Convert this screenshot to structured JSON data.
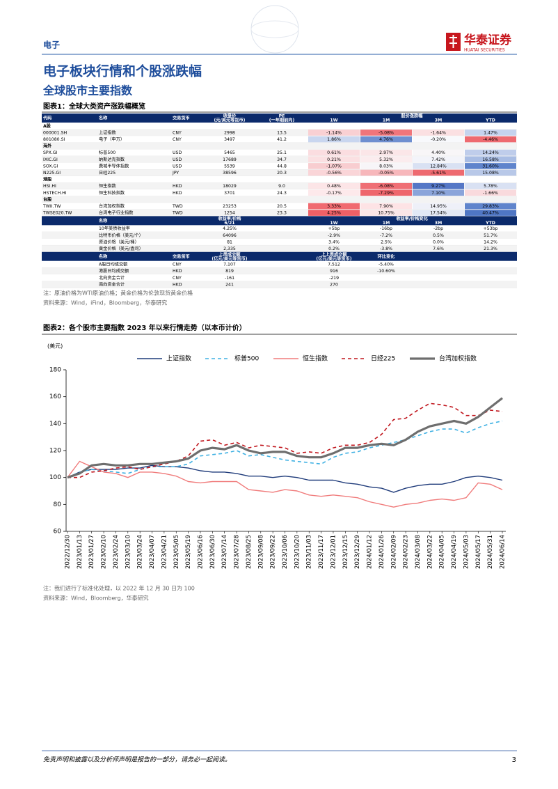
{
  "header": {
    "section": "电子",
    "logo_cn": "华泰证券",
    "logo_en": "HUATAI SECURITIES"
  },
  "title": "电子板块行情和个股涨跌幅",
  "subtitle": "全球股市主要指数",
  "figure1": {
    "caption": "图表1：全球大类资产涨跌幅概览",
    "table1": {
      "head": {
        "code": "代码",
        "name": "名称",
        "currency": "交易货币",
        "close": [
          "收盘价",
          "(元/美元等货币)"
        ],
        "pe": [
          "PE",
          "(一年期前向)"
        ],
        "change": "股价涨跌幅",
        "periods": [
          "1W",
          "1M",
          "3M",
          "YTD"
        ]
      },
      "groups": [
        {
          "label": "A股",
          "rows": [
            {
              "cells": [
                "000001.SH",
                "上证指数",
                "CNY",
                "2998",
                "13.5",
                "-1.14%",
                "-5.08%",
                "-1.64%",
                "1.47%"
              ],
              "fills": [
                "#f9d0d3",
                "#f0757b",
                "#fbe0e2",
                "#c5d3ee"
              ]
            },
            {
              "cells": [
                "801080.SI",
                "电子（申万）",
                "CNY",
                "3497",
                "41.2",
                "1.86%",
                "4.76%",
                "-0.20%",
                "-4.46%"
              ],
              "fills": [
                "#c9d6ef",
                "#6e8fd0",
                "#f8f9fc",
                "#ee6a70"
              ]
            }
          ]
        },
        {
          "label": "海外",
          "rows": [
            {
              "cells": [
                "SPX.GI",
                "标普500",
                "USD",
                "5465",
                "25.1",
                "0.61%",
                "2.97%",
                "4.40%",
                "14.24%"
              ],
              "fills": [
                "#fbdde0",
                "#fbe6e8",
                "#f8f6f8",
                "#bfcdeb"
              ]
            },
            {
              "cells": [
                "IXIC.GI",
                "纳斯达克指数",
                "USD",
                "17689",
                "34.7",
                "0.21%",
                "5.32%",
                "7.42%",
                "16.58%"
              ],
              "fills": [
                "#fbe0e2",
                "#fbecee",
                "#f3f4fa",
                "#a9bde4"
              ]
            },
            {
              "cells": [
                "SOX.GI",
                "费城半导体指数",
                "USD",
                "5539",
                "44.8",
                "-1.07%",
                "8.03%",
                "12.84%",
                "31.60%"
              ],
              "fills": [
                "#f8cdd0",
                "#f7f5f8",
                "#d9e1f3",
                "#5f84cc"
              ]
            },
            {
              "cells": [
                "N225.GI",
                "日经225",
                "JPY",
                "38596",
                "20.3",
                "-0.56%",
                "-0.05%",
                "-5.61%",
                "15.08%"
              ],
              "fills": [
                "#fad5d8",
                "#f7b7bb",
                "#ee6a70",
                "#b8c8e8"
              ]
            }
          ]
        },
        {
          "label": "港股",
          "rows": [
            {
              "cells": [
                "HSI.HI",
                "恒生指数",
                "HKD",
                "18029",
                "9.0",
                "0.48%",
                "-6.08%",
                "9.27%",
                "5.78%"
              ],
              "fills": [
                "#fce5e7",
                "#ef6f75",
                "#5577c6",
                "#d9e1f3"
              ]
            },
            {
              "cells": [
                "HSTECH.HI",
                "恒生科技指数",
                "HKD",
                "3701",
                "24.3",
                "-0.17%",
                "-7.29%",
                "7.10%",
                "-1.66%"
              ],
              "fills": [
                "#fde9eb",
                "#ee666c",
                "#8aa4da",
                "#f9dadd"
              ]
            }
          ]
        },
        {
          "label": "台股",
          "rows": [
            {
              "cells": [
                "TWII.TW",
                "台湾加权指数",
                "TWD",
                "23253",
                "20.5",
                "3.33%",
                "7.90%",
                "14.95%",
                "29.83%"
              ],
              "fills": [
                "#f06a70",
                "#fde3e5",
                "#eef0f8",
                "#5f84cc"
              ]
            },
            {
              "cells": [
                "TWSE020.TW",
                "台湾电子行业指数",
                "TWD",
                "1254",
                "23.3",
                "4.25%",
                "10.75%",
                "17.54%",
                "40.47%"
              ],
              "fills": [
                "#ee6066",
                "#fbe5e7",
                "#e2e8f5",
                "#4f76c4"
              ]
            }
          ]
        }
      ]
    },
    "table2": {
      "head": {
        "name": "名称",
        "value": [
          "收益率/价格",
          "6/21"
        ],
        "change": "收益率/价格变化",
        "periods": [
          "1W",
          "1M",
          "3M",
          "YTD"
        ]
      },
      "rows": [
        [
          "10年美债收益率",
          "4.25%",
          "+5bp",
          "-16bp",
          "-2bp",
          "+53bp"
        ],
        [
          "比特币价格（美元/个）",
          "64096",
          "-2.9%",
          "-7.2%",
          "0.5%",
          "51.7%"
        ],
        [
          "原油价格（美元/桶）",
          "81",
          "3.4%",
          "2.5%",
          "0.0%",
          "14.2%"
        ],
        [
          "黄金价格（美元/盎司）",
          "2,335",
          "0.2%",
          "-3.8%",
          "7.6%",
          "21.3%"
        ]
      ]
    },
    "table3": {
      "head": {
        "name": "名称",
        "currency": "交易货币",
        "last": [
          "上周成交额",
          "(亿元/美元等货币)"
        ],
        "prev": [
          "上上周成交额",
          "(亿元/美元等货币)"
        ],
        "change": "环比变化"
      },
      "rows": [
        [
          "A股日均成交额",
          "CNY",
          "7,107",
          "7,512",
          "-5.40%"
        ],
        [
          "港股日均成交额",
          "HKD",
          "819",
          "916",
          "-10.60%"
        ],
        [
          "北向资金合计",
          "CNY",
          "-161",
          "-219"
        ],
        [
          "南向资金合计",
          "HKD",
          "241",
          "270"
        ]
      ]
    },
    "notes": [
      "注：原油价格为WTI原油价格；黄金价格为伦敦现货黄金价格",
      "资料来源：Wind，iFind，Bloomberg，华泰研究"
    ]
  },
  "figure2": {
    "caption": "图表2：各个股市主要指数 2023 年以来行情走势（以本币计价）",
    "chart": {
      "type": "line",
      "y_label": "(美元)",
      "categories": [
        "2022/12/30",
        "2023/01/13",
        "2023/01/27",
        "2023/02/10",
        "2023/02/24",
        "2023/03/10",
        "2023/03/24",
        "2023/04/07",
        "2023/04/21",
        "2023/05/05",
        "2023/05/19",
        "2023/06/16",
        "2023/06/30",
        "2023/07/14",
        "2023/07/28",
        "2023/08/25",
        "2023/09/08",
        "2023/09/22",
        "2023/10/06",
        "2023/10/20",
        "2023/11/03",
        "2023/11/17",
        "2023/12/01",
        "2023/12/15",
        "2023/12/29",
        "2024/01/12",
        "2024/01/26",
        "2024/02/09",
        "2024/02/23",
        "2024/03/08",
        "2024/03/22",
        "2024/04/05",
        "2024/04/19",
        "2024/05/03",
        "2024/05/17",
        "2024/05/31",
        "2024/06/14"
      ],
      "series": [
        {
          "name": "上证指数",
          "color": "#1f3b7a",
          "style": "solid",
          "values": [
            100,
            104,
            106,
            106,
            106,
            107,
            107,
            109,
            108,
            108,
            107,
            105,
            104,
            104,
            103,
            101,
            101,
            100,
            101,
            100,
            98,
            98,
            98,
            96,
            95,
            93,
            92,
            89,
            92,
            94,
            95,
            95,
            97,
            100,
            101,
            100,
            98
          ]
        },
        {
          "name": "标普500",
          "color": "#3fb1e3",
          "style": "dashed",
          "values": [
            100,
            104,
            106,
            105,
            104,
            103,
            106,
            108,
            108,
            108,
            110,
            116,
            117,
            118,
            120,
            116,
            117,
            115,
            113,
            112,
            111,
            110,
            115,
            118,
            119,
            122,
            124,
            126,
            128,
            131,
            134,
            136,
            136,
            133,
            137,
            140,
            142
          ]
        },
        {
          "name": "恒生指数",
          "color": "#f07b7b",
          "style": "solid",
          "values": [
            100,
            112,
            108,
            104,
            103,
            100,
            104,
            104,
            103,
            101,
            97,
            96,
            97,
            97,
            97,
            91,
            90,
            89,
            91,
            90,
            87,
            86,
            87,
            86,
            85,
            82,
            80,
            78,
            80,
            81,
            83,
            84,
            83,
            85,
            96,
            95,
            91
          ]
        },
        {
          "name": "日经225",
          "color": "#c0161d",
          "style": "dashed",
          "values": [
            100,
            100,
            104,
            105,
            107,
            108,
            106,
            108,
            110,
            112,
            116,
            127,
            128,
            124,
            126,
            122,
            124,
            123,
            122,
            118,
            119,
            118,
            122,
            124,
            124,
            126,
            132,
            143,
            144,
            150,
            155,
            154,
            152,
            146,
            146,
            150,
            149
          ]
        },
        {
          "name": "台湾加权指数",
          "color": "#6e6e6e",
          "style": "solid",
          "values": [
            100,
            103,
            109,
            110,
            109,
            109,
            110,
            110,
            111,
            112,
            114,
            120,
            122,
            121,
            124,
            120,
            118,
            119,
            119,
            116,
            115,
            115,
            118,
            122,
            122,
            124,
            125,
            124,
            128,
            134,
            138,
            140,
            142,
            140,
            145,
            152,
            159
          ]
        }
      ],
      "ylim": [
        60,
        180
      ],
      "yticks": [
        60,
        80,
        100,
        120,
        140,
        160,
        180
      ]
    },
    "notes": [
      "注：我们进行了标准化处理，以 2022 年 12 月 30 日为 100",
      "资料来源：Wind，Bloomberg，华泰研究"
    ]
  },
  "footer": {
    "disclaimer": "免责声明和披露以及分析师声明是报告的一部分，请务必一起阅读。",
    "page": "3"
  }
}
